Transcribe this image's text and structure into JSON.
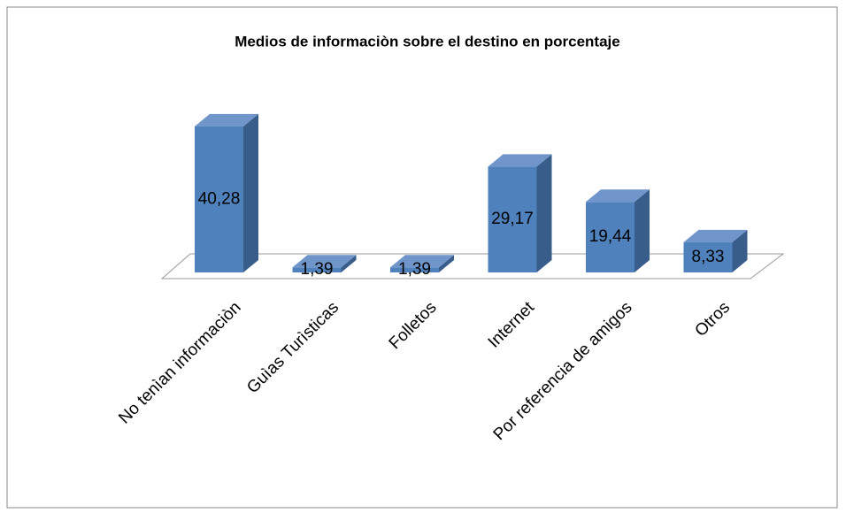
{
  "chart_data": {
    "type": "bar3d",
    "title": "Medios de informaciòn sobre el destino en porcentaje",
    "categories": [
      "No tenìan informaciòn",
      "Guìas Turìsticas",
      "Folletos",
      "Internet",
      "Por referencia de amigos",
      "Otros"
    ],
    "values": [
      40.28,
      1.39,
      1.39,
      29.17,
      19.44,
      8.33
    ],
    "value_labels": [
      "40,28",
      "1,39",
      "1,39",
      "29,17",
      "19,44",
      "8,33"
    ],
    "color": "#4f81bd"
  }
}
